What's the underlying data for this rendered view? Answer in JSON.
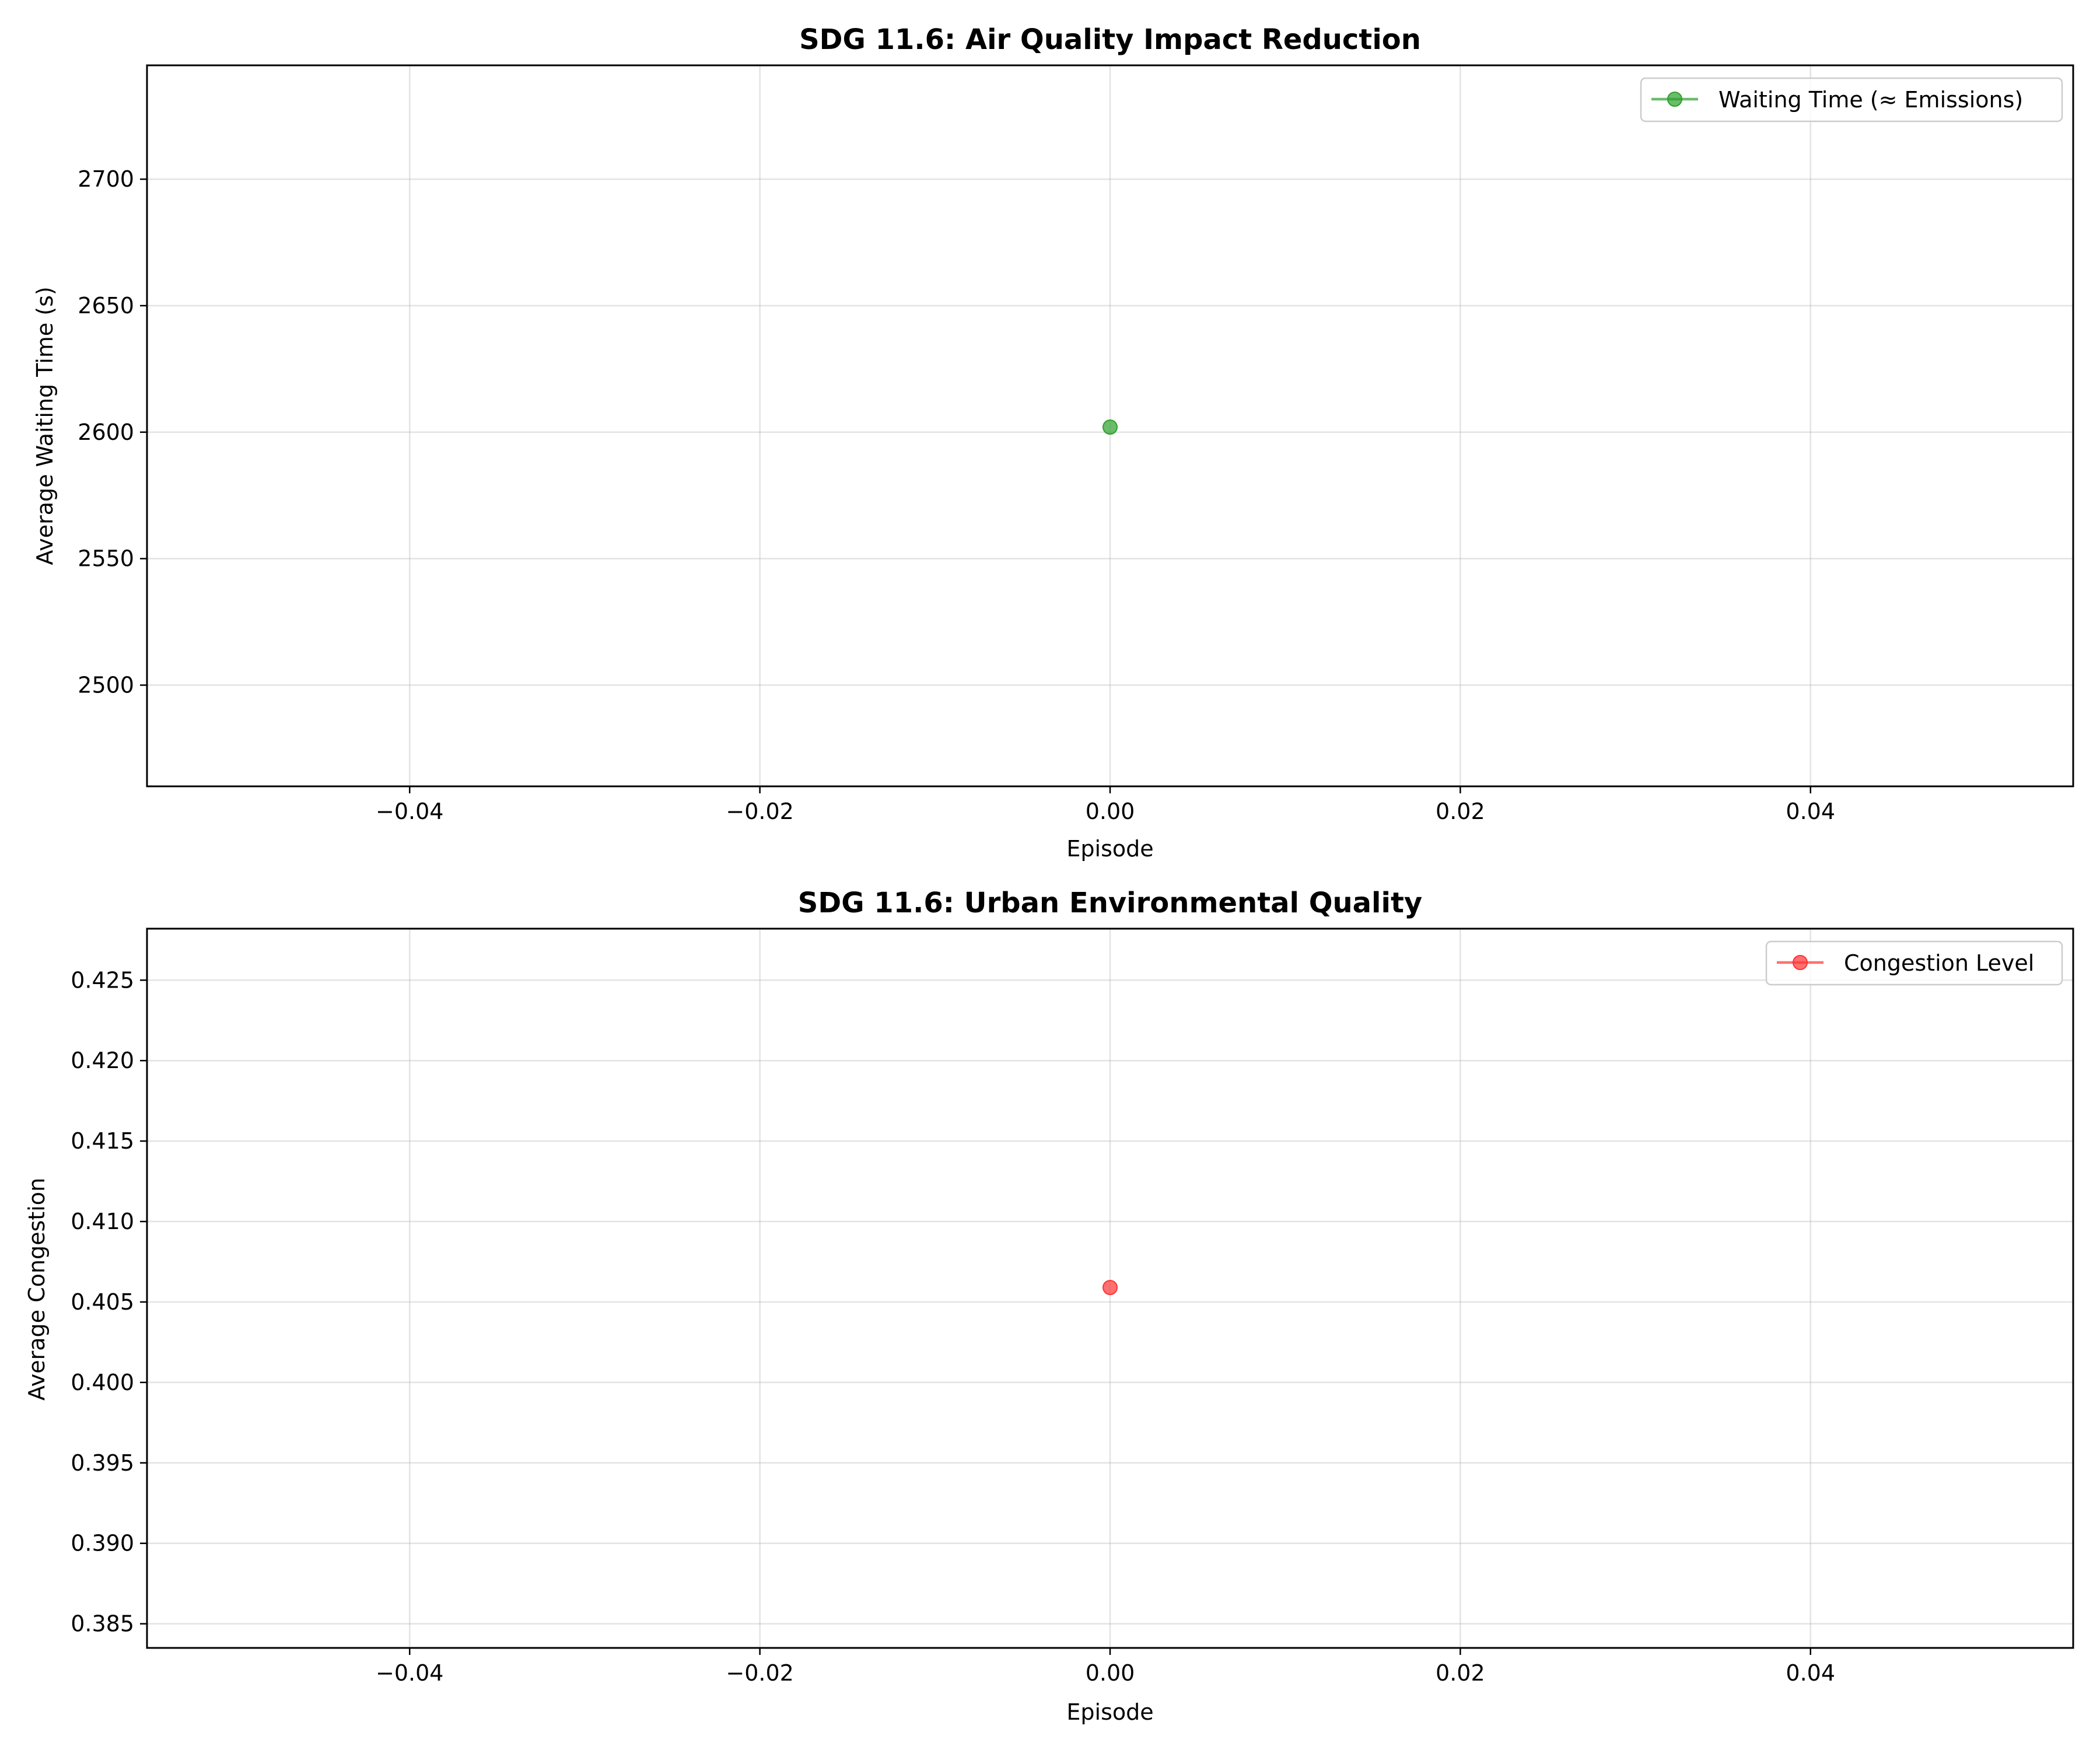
{
  "chart_data": [
    {
      "type": "line",
      "title": "SDG 11.6: Air Quality Impact Reduction",
      "xlabel": "Episode",
      "ylabel": "Average Waiting Time (s)",
      "xlim": [
        -0.055,
        0.055
      ],
      "ylim": [
        2460,
        2745
      ],
      "xticks": [
        -0.04,
        -0.02,
        0.0,
        0.02,
        0.04
      ],
      "xtick_labels": [
        "−0.04",
        "−0.02",
        "0.00",
        "0.02",
        "0.04"
      ],
      "yticks": [
        2500,
        2550,
        2600,
        2650,
        2700
      ],
      "ytick_labels": [
        "2500",
        "2550",
        "2600",
        "2650",
        "2700"
      ],
      "grid": true,
      "legend_position": "top-right",
      "series": [
        {
          "name": "Waiting Time (≈ Emissions)",
          "color": "#2ca02c",
          "marker": "circle",
          "x": [
            0
          ],
          "y": [
            2602
          ]
        }
      ]
    },
    {
      "type": "line",
      "title": "SDG 11.6: Urban Environmental Quality",
      "xlabel": "Episode",
      "ylabel": "Average Congestion",
      "xlim": [
        -0.055,
        0.055
      ],
      "ylim": [
        0.3835,
        0.4282
      ],
      "xticks": [
        -0.04,
        -0.02,
        0.0,
        0.02,
        0.04
      ],
      "xtick_labels": [
        "−0.04",
        "−0.02",
        "0.00",
        "0.02",
        "0.04"
      ],
      "yticks": [
        0.385,
        0.39,
        0.395,
        0.4,
        0.405,
        0.41,
        0.415,
        0.42,
        0.425
      ],
      "ytick_labels": [
        "0.385",
        "0.390",
        "0.395",
        "0.400",
        "0.405",
        "0.410",
        "0.415",
        "0.420",
        "0.425"
      ],
      "grid": true,
      "legend_position": "top-right",
      "series": [
        {
          "name": "Congestion Level",
          "color": "#ff3333",
          "marker": "circle",
          "x": [
            0
          ],
          "y": [
            0.4059
          ]
        }
      ]
    }
  ]
}
